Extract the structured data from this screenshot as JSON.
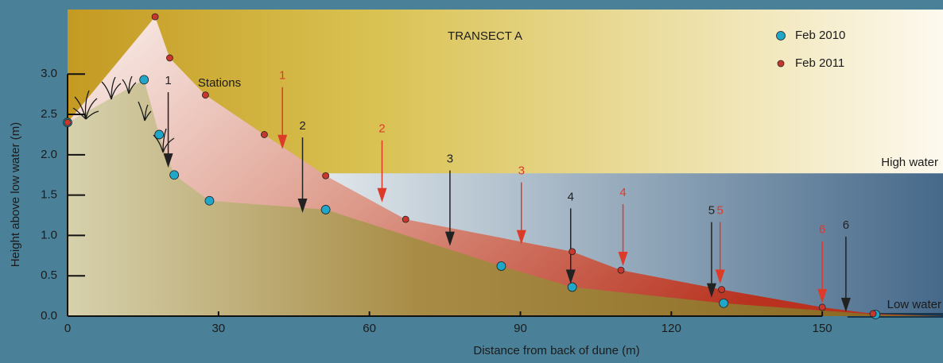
{
  "chart_data": {
    "type": "scatter",
    "title": "TRANSECT A",
    "x_label": "Distance from back of dune (m)",
    "y_label": "Height above low water (m)",
    "xlim": [
      0,
      174
    ],
    "ylim": [
      0,
      3.8
    ],
    "xticks": [
      0,
      30,
      60,
      90,
      120,
      150
    ],
    "yticks": [
      {
        "value": 0,
        "label": "0.0"
      },
      0.5,
      {
        "value": 1,
        "label": "1.0"
      },
      1.5,
      {
        "value": 2,
        "label": "2.0"
      },
      2.5,
      {
        "value": 3,
        "label": "3.0"
      }
    ],
    "legend": "upper right",
    "series": [
      {
        "name": "Feb 2010",
        "color": "#1ea7c9",
        "x": [
          0,
          15.2,
          18.2,
          21.2,
          28.2,
          51.3,
          86.2,
          100.3,
          130.4,
          160.6
        ],
        "values": [
          2.4,
          2.93,
          2.25,
          1.75,
          1.43,
          1.32,
          0.62,
          0.36,
          0.16,
          0.02
        ]
      },
      {
        "name": "Feb 2011",
        "color": "#c8372d",
        "x": [
          0,
          17.4,
          20.3,
          27.4,
          39.1,
          51.3,
          67.2,
          100.3,
          110,
          130,
          150,
          160.1
        ],
        "values": [
          2.4,
          3.71,
          3.2,
          2.74,
          2.25,
          1.74,
          1.2,
          0.8,
          0.57,
          0.33,
          0.11,
          0.03
        ]
      }
    ],
    "stations_label": "Stations",
    "station_arrows": [
      {
        "color": "#222222",
        "labels": [
          "1",
          "2",
          "3",
          "4",
          "5",
          "6"
        ],
        "x": [
          20,
          46.7,
          76,
          100,
          128,
          154.7
        ],
        "y": [
          1.84,
          1.28,
          0.87,
          0.4,
          0.23,
          0.05
        ]
      },
      {
        "color": "#dd3b2a",
        "labels": [
          "1",
          "2",
          "3",
          "4",
          "5",
          "6"
        ],
        "x": [
          42.7,
          62.5,
          90.2,
          110.4,
          129.7,
          150
        ],
        "y": [
          2.07,
          1.41,
          0.89,
          0.62,
          0.4,
          0.16
        ]
      }
    ],
    "high_water": {
      "label": "High water",
      "value": 1.77,
      "from_x": 52
    },
    "low_water": {
      "label": "Low water",
      "value": 0
    }
  }
}
